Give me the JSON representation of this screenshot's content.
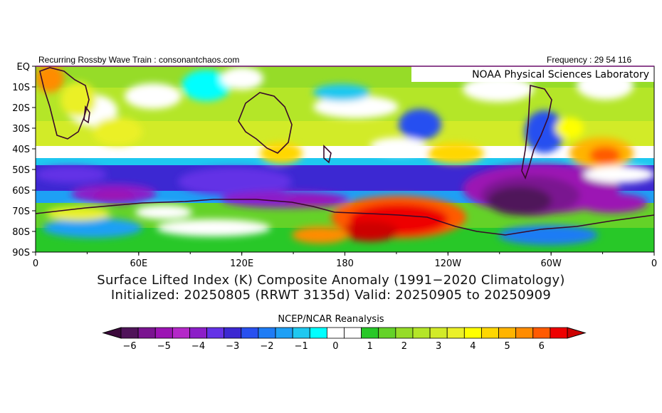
{
  "header": {
    "left": "Recurring Rossby Wave Train : consonantchaos.com",
    "right": "Frequency : 29 54 116",
    "lab": "NOAA Physical Sciences Laboratory"
  },
  "map": {
    "lat_labels": [
      "EQ",
      "10S",
      "20S",
      "30S",
      "40S",
      "50S",
      "60S",
      "70S",
      "80S",
      "90S"
    ],
    "lon_labels": [
      "0",
      "60E",
      "120E",
      "180",
      "120W",
      "60W",
      "0"
    ],
    "lat_range": [
      -90,
      0
    ],
    "lon_range": [
      0,
      360
    ]
  },
  "title": {
    "line1": "Surface Lifted Index (K) Composite Anomaly (1991−2020 Climatology)",
    "line2": "Initialized: 20250805 (RRWT 3135d) Valid: 20250905 to 20250909"
  },
  "colorbar": {
    "label": "NCEP/NCAR Reanalysis",
    "ticks": [
      "−6",
      "−5",
      "−4",
      "−3",
      "−2",
      "−1",
      "0",
      "1",
      "2",
      "3",
      "4",
      "5",
      "6"
    ],
    "low_color": "#3c0a3c",
    "high_color": "#cc0000",
    "colors": [
      "#50145a",
      "#7a1490",
      "#9c14b4",
      "#b428c8",
      "#8c1ec8",
      "#6432e6",
      "#3c28d2",
      "#2850f0",
      "#1e7cf5",
      "#1ea0f5",
      "#1ec8f0",
      "#00ffff",
      "#ffffff",
      "#ffffff",
      "#28c828",
      "#64d228",
      "#96dc28",
      "#b4e628",
      "#d2eb28",
      "#ebf028",
      "#ffff00",
      "#ffd700",
      "#ffb400",
      "#ff8c00",
      "#ff5a00",
      "#ee0000"
    ]
  }
}
